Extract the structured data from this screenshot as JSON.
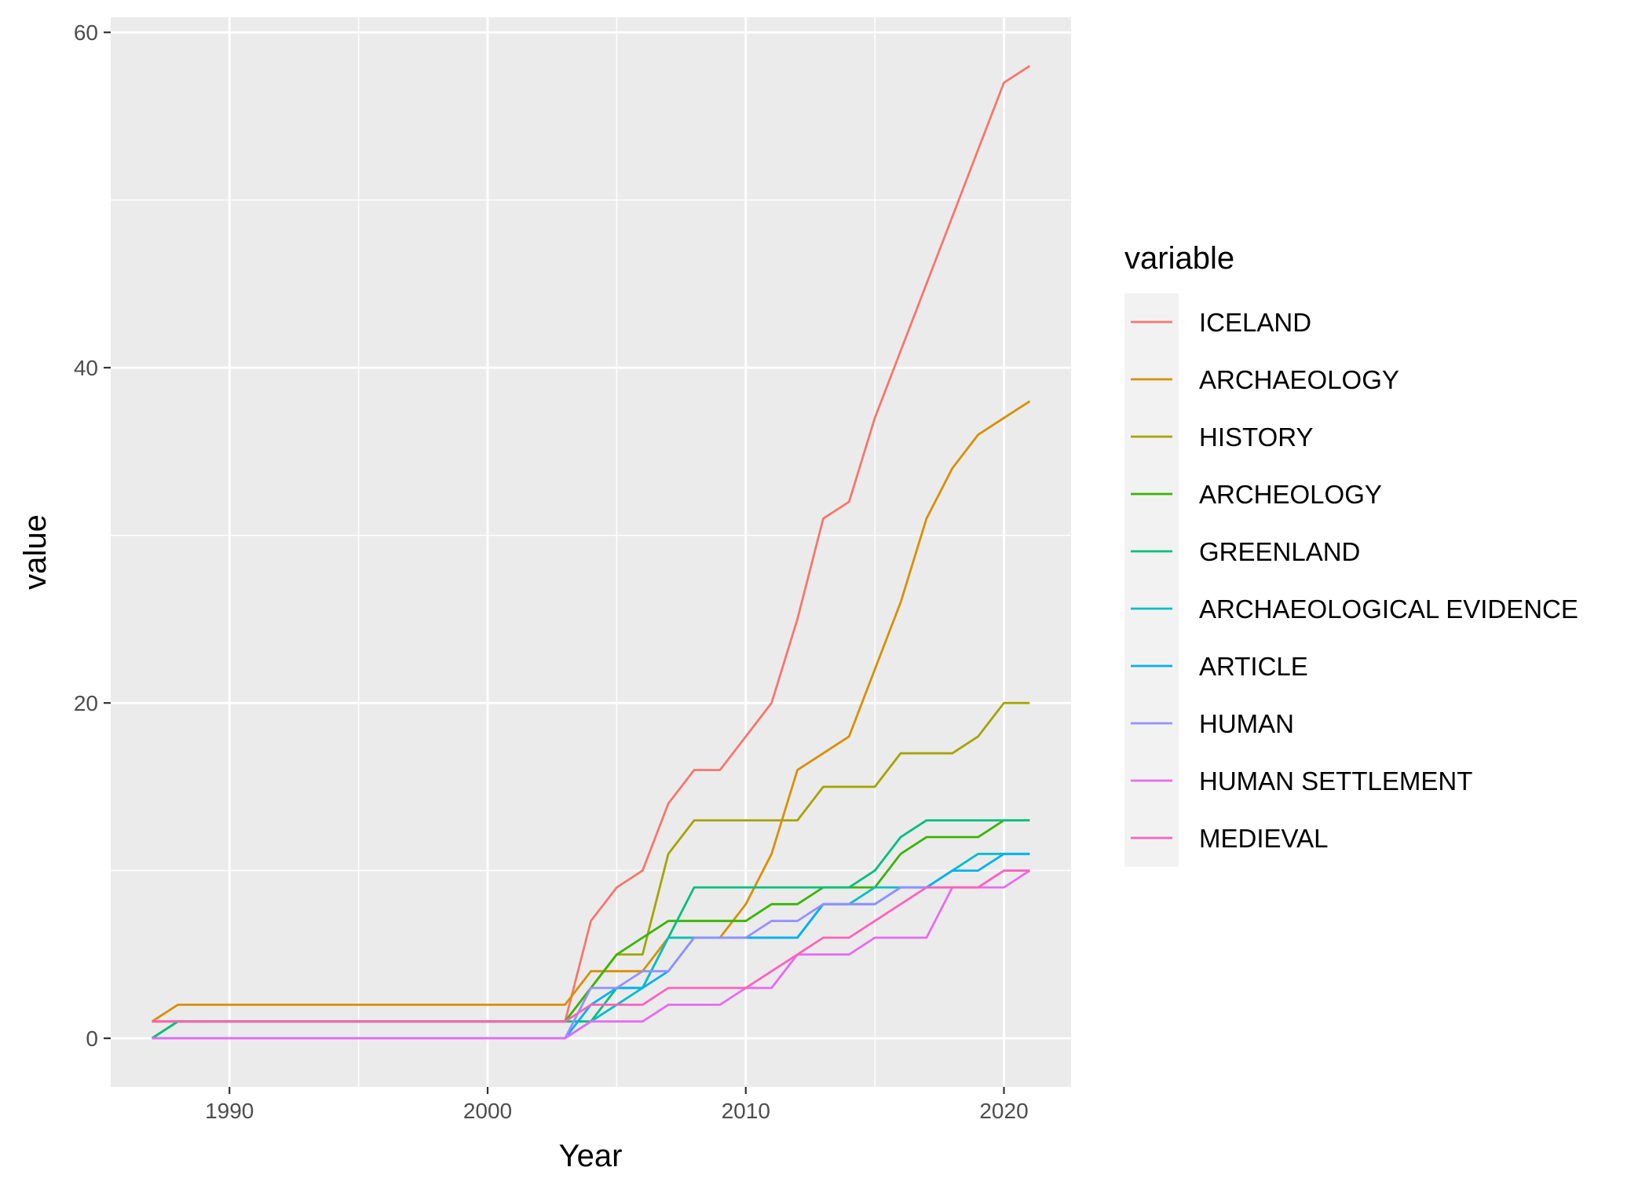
{
  "chart_data": {
    "type": "line",
    "xlabel": "Year",
    "ylabel": "value",
    "xlim": [
      1985.4,
      2022.6
    ],
    "ylim": [
      -2.9,
      60.9
    ],
    "x_ticks": [
      1990,
      2000,
      2010,
      2020
    ],
    "y_ticks": [
      0,
      20,
      40,
      60
    ],
    "grid": true,
    "legend": {
      "title": "variable",
      "placement": "right"
    },
    "x": [
      1987,
      1988,
      1989,
      1990,
      1991,
      1992,
      1993,
      1994,
      1995,
      1996,
      1997,
      1998,
      1999,
      2000,
      2001,
      2002,
      2003,
      2004,
      2005,
      2006,
      2007,
      2008,
      2009,
      2010,
      2011,
      2012,
      2013,
      2014,
      2015,
      2016,
      2017,
      2018,
      2019,
      2020,
      2021
    ],
    "series": [
      {
        "name": "ICELAND",
        "color": "#F8766D",
        "values": [
          1,
          1,
          1,
          1,
          1,
          1,
          1,
          1,
          1,
          1,
          1,
          1,
          1,
          1,
          1,
          1,
          1,
          7,
          9,
          10,
          14,
          16,
          16,
          18,
          20,
          25,
          31,
          32,
          37,
          41,
          45,
          49,
          53,
          57,
          58
        ]
      },
      {
        "name": "ARCHAEOLOGY",
        "color": "#D89000",
        "values": [
          1,
          2,
          2,
          2,
          2,
          2,
          2,
          2,
          2,
          2,
          2,
          2,
          2,
          2,
          2,
          2,
          2,
          4,
          4,
          4,
          6,
          6,
          6,
          8,
          11,
          16,
          17,
          18,
          22,
          26,
          31,
          34,
          36,
          37,
          38
        ]
      },
      {
        "name": "HISTORY",
        "color": "#A3A500",
        "values": [
          1,
          1,
          1,
          1,
          1,
          1,
          1,
          1,
          1,
          1,
          1,
          1,
          1,
          1,
          1,
          1,
          1,
          3,
          5,
          5,
          11,
          13,
          13,
          13,
          13,
          13,
          15,
          15,
          15,
          17,
          17,
          17,
          18,
          20,
          20
        ]
      },
      {
        "name": "ARCHEOLOGY",
        "color": "#39B600",
        "values": [
          0,
          1,
          1,
          1,
          1,
          1,
          1,
          1,
          1,
          1,
          1,
          1,
          1,
          1,
          1,
          1,
          1,
          3,
          5,
          6,
          7,
          7,
          7,
          7,
          8,
          8,
          9,
          9,
          9,
          11,
          12,
          12,
          12,
          13,
          13
        ]
      },
      {
        "name": "GREENLAND",
        "color": "#00BF7D",
        "values": [
          0,
          1,
          1,
          1,
          1,
          1,
          1,
          1,
          1,
          1,
          1,
          1,
          1,
          1,
          1,
          1,
          1,
          1,
          3,
          3,
          6,
          9,
          9,
          9,
          9,
          9,
          9,
          9,
          10,
          12,
          13,
          13,
          13,
          13,
          13
        ]
      },
      {
        "name": "ARCHAEOLOGICAL EVIDENCE",
        "color": "#00BFC4",
        "values": [
          0,
          0,
          0,
          0,
          0,
          0,
          0,
          0,
          0,
          0,
          0,
          0,
          0,
          0,
          0,
          0,
          0,
          1,
          2,
          3,
          6,
          6,
          6,
          6,
          6,
          6,
          8,
          8,
          9,
          9,
          9,
          10,
          11,
          11,
          11
        ]
      },
      {
        "name": "ARTICLE",
        "color": "#00B0F6",
        "values": [
          0,
          0,
          0,
          0,
          0,
          0,
          0,
          0,
          0,
          0,
          0,
          0,
          0,
          0,
          0,
          0,
          0,
          2,
          3,
          3,
          4,
          6,
          6,
          6,
          6,
          6,
          8,
          8,
          8,
          9,
          9,
          10,
          10,
          11,
          11
        ]
      },
      {
        "name": "HUMAN",
        "color": "#9590FF",
        "values": [
          0,
          0,
          0,
          0,
          0,
          0,
          0,
          0,
          0,
          0,
          0,
          0,
          0,
          0,
          0,
          0,
          0,
          3,
          3,
          4,
          4,
          6,
          6,
          6,
          7,
          7,
          8,
          8,
          8,
          9,
          9,
          9,
          9,
          10,
          10
        ]
      },
      {
        "name": "HUMAN SETTLEMENT",
        "color": "#E76BF3",
        "values": [
          0,
          0,
          0,
          0,
          0,
          0,
          0,
          0,
          0,
          0,
          0,
          0,
          0,
          0,
          0,
          0,
          0,
          1,
          1,
          1,
          2,
          2,
          2,
          3,
          3,
          5,
          5,
          5,
          6,
          6,
          6,
          9,
          9,
          9,
          10
        ]
      },
      {
        "name": "MEDIEVAL",
        "color": "#FF62BC",
        "values": [
          1,
          1,
          1,
          1,
          1,
          1,
          1,
          1,
          1,
          1,
          1,
          1,
          1,
          1,
          1,
          1,
          1,
          2,
          2,
          2,
          3,
          3,
          3,
          3,
          4,
          5,
          6,
          6,
          7,
          8,
          9,
          9,
          9,
          10,
          10
        ]
      }
    ]
  }
}
